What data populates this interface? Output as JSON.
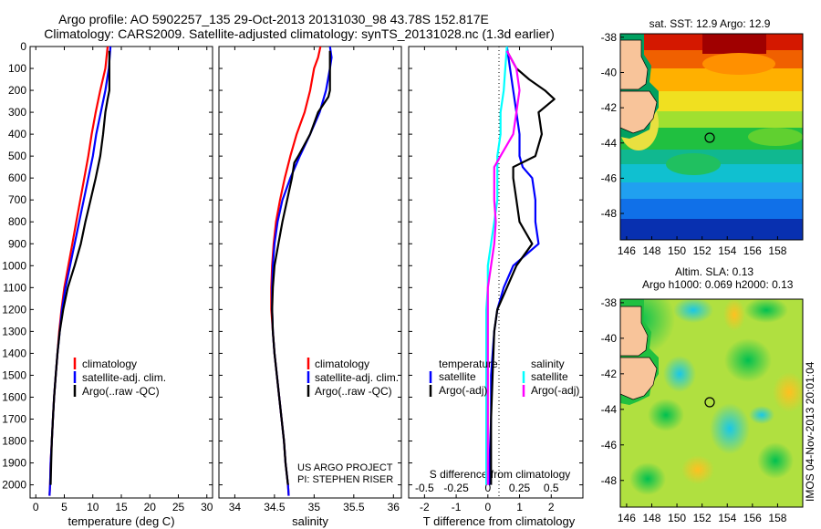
{
  "header": {
    "line1": "Argo profile: AO 5902257_135 29-Oct-2013 20131030_98 43.78S 152.817E",
    "line2": "Climatology: CARS2009. Satellite-adjusted climatology: synTS_20131028.nc (1.3d earlier)"
  },
  "project": {
    "line1": "US ARGO PROJECT",
    "line2": "PI: STEPHEN RISER"
  },
  "watermark": "IMOS 04-Nov-2013 20:01:04",
  "colors": {
    "red": "#ff0000",
    "blue": "#0000ff",
    "black": "#000000",
    "cyan": "#00ffff",
    "magenta": "#ff00ff"
  },
  "chart_data": [
    {
      "type": "line",
      "xlabel": "temperature (deg C)",
      "ylabel": "",
      "xlim": [
        -1,
        31
      ],
      "ylim": [
        2060,
        0
      ],
      "xticks": [
        0,
        5,
        10,
        15,
        20,
        25,
        30
      ],
      "yticks": [
        0,
        100,
        200,
        300,
        400,
        500,
        600,
        700,
        800,
        900,
        1000,
        1100,
        1200,
        1300,
        1400,
        1500,
        1600,
        1700,
        1800,
        1900,
        2000
      ],
      "legend": [
        "climatology",
        "satellite-adj. clim.",
        "Argo(..raw -QC)"
      ],
      "series": [
        {
          "name": "climatology",
          "color": "#ff0000",
          "width": 2.2,
          "points": [
            [
              12.6,
              0
            ],
            [
              12.2,
              100
            ],
            [
              11.3,
              200
            ],
            [
              10.5,
              300
            ],
            [
              9.8,
              400
            ],
            [
              9.2,
              500
            ],
            [
              8.5,
              600
            ],
            [
              7.8,
              700
            ],
            [
              7.1,
              800
            ],
            [
              6.4,
              900
            ],
            [
              5.7,
              1000
            ],
            [
              5.0,
              1100
            ],
            [
              4.5,
              1200
            ],
            [
              4.1,
              1300
            ],
            [
              3.8,
              1400
            ],
            [
              3.5,
              1500
            ],
            [
              3.2,
              1600
            ],
            [
              3.0,
              1700
            ],
            [
              2.8,
              1800
            ],
            [
              2.6,
              1900
            ],
            [
              2.5,
              2000
            ],
            [
              2.4,
              2050
            ]
          ]
        },
        {
          "name": "satellite-adj. clim.",
          "color": "#0000ff",
          "width": 2.2,
          "points": [
            [
              13.1,
              0
            ],
            [
              12.8,
              100
            ],
            [
              12.2,
              200
            ],
            [
              11.4,
              300
            ],
            [
              10.6,
              400
            ],
            [
              10.0,
              500
            ],
            [
              9.2,
              600
            ],
            [
              8.4,
              700
            ],
            [
              7.6,
              800
            ],
            [
              6.8,
              900
            ],
            [
              6.0,
              1000
            ],
            [
              5.2,
              1100
            ],
            [
              4.6,
              1200
            ],
            [
              4.2,
              1300
            ],
            [
              3.8,
              1400
            ],
            [
              3.5,
              1500
            ],
            [
              3.2,
              1600
            ],
            [
              3.0,
              1700
            ],
            [
              2.8,
              1800
            ],
            [
              2.6,
              1900
            ],
            [
              2.5,
              2000
            ],
            [
              2.4,
              2050
            ]
          ]
        },
        {
          "name": "Argo(..raw -QC)",
          "color": "#000000",
          "width": 2.2,
          "points": [
            [
              12.9,
              20
            ],
            [
              12.9,
              100
            ],
            [
              12.9,
              200
            ],
            [
              12.6,
              240
            ],
            [
              12.2,
              300
            ],
            [
              11.8,
              400
            ],
            [
              11.3,
              500
            ],
            [
              10.5,
              600
            ],
            [
              9.6,
              700
            ],
            [
              8.7,
              800
            ],
            [
              7.9,
              900
            ],
            [
              6.8,
              1000
            ],
            [
              5.6,
              1100
            ],
            [
              4.8,
              1200
            ],
            [
              4.2,
              1300
            ],
            [
              3.8,
              1400
            ],
            [
              3.5,
              1500
            ],
            [
              3.2,
              1600
            ],
            [
              3.0,
              1700
            ],
            [
              2.8,
              1800
            ],
            [
              2.7,
              1900
            ],
            [
              2.6,
              2000
            ]
          ]
        }
      ]
    },
    {
      "type": "line",
      "xlabel": "salinity",
      "ylabel": "",
      "xlim": [
        33.8,
        36.1
      ],
      "ylim": [
        2060,
        0
      ],
      "xticks": [
        34,
        34.5,
        35,
        35.5,
        36
      ],
      "legend": [
        "climatology",
        "satellite-adj. clim.",
        "Argo(..raw -QC)"
      ],
      "series": [
        {
          "name": "climatology",
          "color": "#ff0000",
          "width": 2.2,
          "points": [
            [
              35.08,
              0
            ],
            [
              35.05,
              50
            ],
            [
              35.0,
              100
            ],
            [
              34.95,
              200
            ],
            [
              34.88,
              300
            ],
            [
              34.78,
              400
            ],
            [
              34.7,
              500
            ],
            [
              34.63,
              600
            ],
            [
              34.57,
              700
            ],
            [
              34.52,
              800
            ],
            [
              34.49,
              900
            ],
            [
              34.47,
              1000
            ],
            [
              34.46,
              1100
            ],
            [
              34.46,
              1200
            ],
            [
              34.48,
              1300
            ],
            [
              34.5,
              1400
            ],
            [
              34.53,
              1500
            ],
            [
              34.56,
              1600
            ],
            [
              34.59,
              1700
            ],
            [
              34.62,
              1800
            ],
            [
              34.64,
              1900
            ],
            [
              34.67,
              2000
            ],
            [
              34.68,
              2050
            ]
          ]
        },
        {
          "name": "satellite-adj. clim.",
          "color": "#0000ff",
          "width": 2.2,
          "points": [
            [
              35.2,
              0
            ],
            [
              35.22,
              50
            ],
            [
              35.2,
              100
            ],
            [
              35.15,
              200
            ],
            [
              35.07,
              300
            ],
            [
              34.95,
              400
            ],
            [
              34.82,
              500
            ],
            [
              34.7,
              600
            ],
            [
              34.6,
              700
            ],
            [
              34.54,
              800
            ],
            [
              34.5,
              900
            ],
            [
              34.48,
              1000
            ],
            [
              34.47,
              1100
            ],
            [
              34.47,
              1200
            ],
            [
              34.48,
              1300
            ],
            [
              34.5,
              1400
            ],
            [
              34.53,
              1500
            ],
            [
              34.56,
              1600
            ],
            [
              34.59,
              1700
            ],
            [
              34.62,
              1800
            ],
            [
              34.64,
              1900
            ],
            [
              34.67,
              2000
            ],
            [
              34.68,
              2050
            ]
          ]
        },
        {
          "name": "Argo(..raw -QC)",
          "color": "#000000",
          "width": 2.2,
          "points": [
            [
              35.2,
              20
            ],
            [
              35.2,
              100
            ],
            [
              35.2,
              200
            ],
            [
              35.18,
              230
            ],
            [
              35.05,
              300
            ],
            [
              34.95,
              400
            ],
            [
              34.8,
              500
            ],
            [
              34.75,
              530
            ],
            [
              34.72,
              600
            ],
            [
              34.66,
              700
            ],
            [
              34.6,
              800
            ],
            [
              34.55,
              900
            ],
            [
              34.5,
              1000
            ],
            [
              34.48,
              1100
            ],
            [
              34.47,
              1200
            ],
            [
              34.48,
              1300
            ],
            [
              34.5,
              1400
            ],
            [
              34.53,
              1500
            ],
            [
              34.56,
              1600
            ],
            [
              34.59,
              1700
            ],
            [
              34.62,
              1800
            ],
            [
              34.64,
              1900
            ],
            [
              34.67,
              2000
            ]
          ]
        }
      ]
    },
    {
      "type": "line",
      "xlabel": "T difference from climatology",
      "toplabel": "S difference from climatology",
      "ylabel": "",
      "xlim": [
        -2.5,
        3
      ],
      "ylim": [
        2060,
        0
      ],
      "xticks": [
        -2,
        -1,
        0,
        1,
        2
      ],
      "topticks": [
        -0.5,
        -0.25,
        0,
        0.25,
        0.5
      ],
      "zero_line": "dotted",
      "legend_titles": [
        "temperature",
        "salinity"
      ],
      "legend": [
        "satellite",
        "Argo(-adj)",
        "satellite",
        "Argo(-adj)"
      ],
      "series": [
        {
          "name": "satellite",
          "group": "temperature",
          "color": "#0000ff",
          "width": 2.2,
          "points": [
            [
              0.6,
              0
            ],
            [
              0.7,
              100
            ],
            [
              0.8,
              200
            ],
            [
              0.9,
              300
            ],
            [
              1.0,
              400
            ],
            [
              1.0,
              500
            ],
            [
              1.1,
              550
            ],
            [
              1.4,
              600
            ],
            [
              1.5,
              700
            ],
            [
              1.5,
              800
            ],
            [
              1.6,
              900
            ],
            [
              1.2,
              950
            ],
            [
              0.8,
              1000
            ],
            [
              0.5,
              1100
            ],
            [
              0.3,
              1200
            ],
            [
              0.2,
              1300
            ],
            [
              0.1,
              1500
            ],
            [
              0.1,
              1700
            ],
            [
              0.05,
              1900
            ],
            [
              0.05,
              2000
            ]
          ]
        },
        {
          "name": "Argo(-adj)",
          "group": "temperature",
          "color": "#000000",
          "width": 2.2,
          "points": [
            [
              0.6,
              20
            ],
            [
              0.9,
              100
            ],
            [
              1.3,
              150
            ],
            [
              1.8,
              200
            ],
            [
              2.1,
              240
            ],
            [
              1.6,
              300
            ],
            [
              1.7,
              400
            ],
            [
              1.5,
              500
            ],
            [
              0.8,
              550
            ],
            [
              0.8,
              600
            ],
            [
              0.9,
              700
            ],
            [
              1.0,
              800
            ],
            [
              1.4,
              900
            ],
            [
              0.9,
              1000
            ],
            [
              0.6,
              1100
            ],
            [
              0.3,
              1200
            ],
            [
              0.2,
              1300
            ],
            [
              0.15,
              1500
            ],
            [
              0.1,
              1700
            ],
            [
              0.1,
              1900
            ],
            [
              0.1,
              2000
            ]
          ]
        },
        {
          "name": "satellite",
          "group": "salinity",
          "color": "#00ffff",
          "width": 2.2,
          "points": [
            [
              0.6,
              0
            ],
            [
              0.55,
              100
            ],
            [
              0.5,
              200
            ],
            [
              0.4,
              300
            ],
            [
              0.4,
              400
            ],
            [
              0.3,
              500
            ],
            [
              0.3,
              600
            ],
            [
              0.3,
              700
            ],
            [
              0.2,
              800
            ],
            [
              0.1,
              900
            ],
            [
              0.0,
              1000
            ],
            [
              0.0,
              1100
            ],
            [
              -0.05,
              1200
            ],
            [
              -0.05,
              1400
            ],
            [
              -0.05,
              1600
            ],
            [
              -0.05,
              1800
            ],
            [
              -0.05,
              2000
            ]
          ]
        },
        {
          "name": "Argo(-adj)",
          "group": "salinity",
          "color": "#ff00ff",
          "width": 2.2,
          "points": [
            [
              0.6,
              20
            ],
            [
              0.9,
              100
            ],
            [
              1.0,
              200
            ],
            [
              0.9,
              300
            ],
            [
              0.8,
              400
            ],
            [
              0.4,
              500
            ],
            [
              0.2,
              550
            ],
            [
              0.2,
              600
            ],
            [
              0.2,
              700
            ],
            [
              0.25,
              800
            ],
            [
              0.2,
              900
            ],
            [
              0.1,
              1000
            ],
            [
              0.0,
              1100
            ],
            [
              0.0,
              1200
            ],
            [
              0.0,
              1400
            ],
            [
              0.0,
              1600
            ],
            [
              0.0,
              1800
            ],
            [
              0.0,
              2000
            ]
          ]
        }
      ]
    },
    {
      "type": "heatmap",
      "title": "sat. SST: 12.9 Argo: 12.9",
      "xticks": [
        146,
        148,
        150,
        152,
        154,
        156,
        158
      ],
      "yticks": [
        -38,
        -40,
        -42,
        -44,
        -46,
        -48
      ],
      "xlim": [
        145.5,
        160
      ],
      "ylim": [
        -49.5,
        -37.8
      ],
      "float_position": [
        152.817,
        -43.78
      ]
    },
    {
      "type": "heatmap",
      "title": "Altim. SLA: 0.13",
      "subtitle": "Argo h1000: 0.069 h2000: 0.13",
      "xticks": [
        146,
        148,
        150,
        152,
        154,
        156,
        158
      ],
      "yticks": [
        -38,
        -40,
        -42,
        -44,
        -46,
        -48
      ],
      "xlim": [
        145.5,
        160
      ],
      "ylim": [
        -49.5,
        -37.8
      ],
      "float_position": [
        152.817,
        -43.78
      ]
    }
  ]
}
